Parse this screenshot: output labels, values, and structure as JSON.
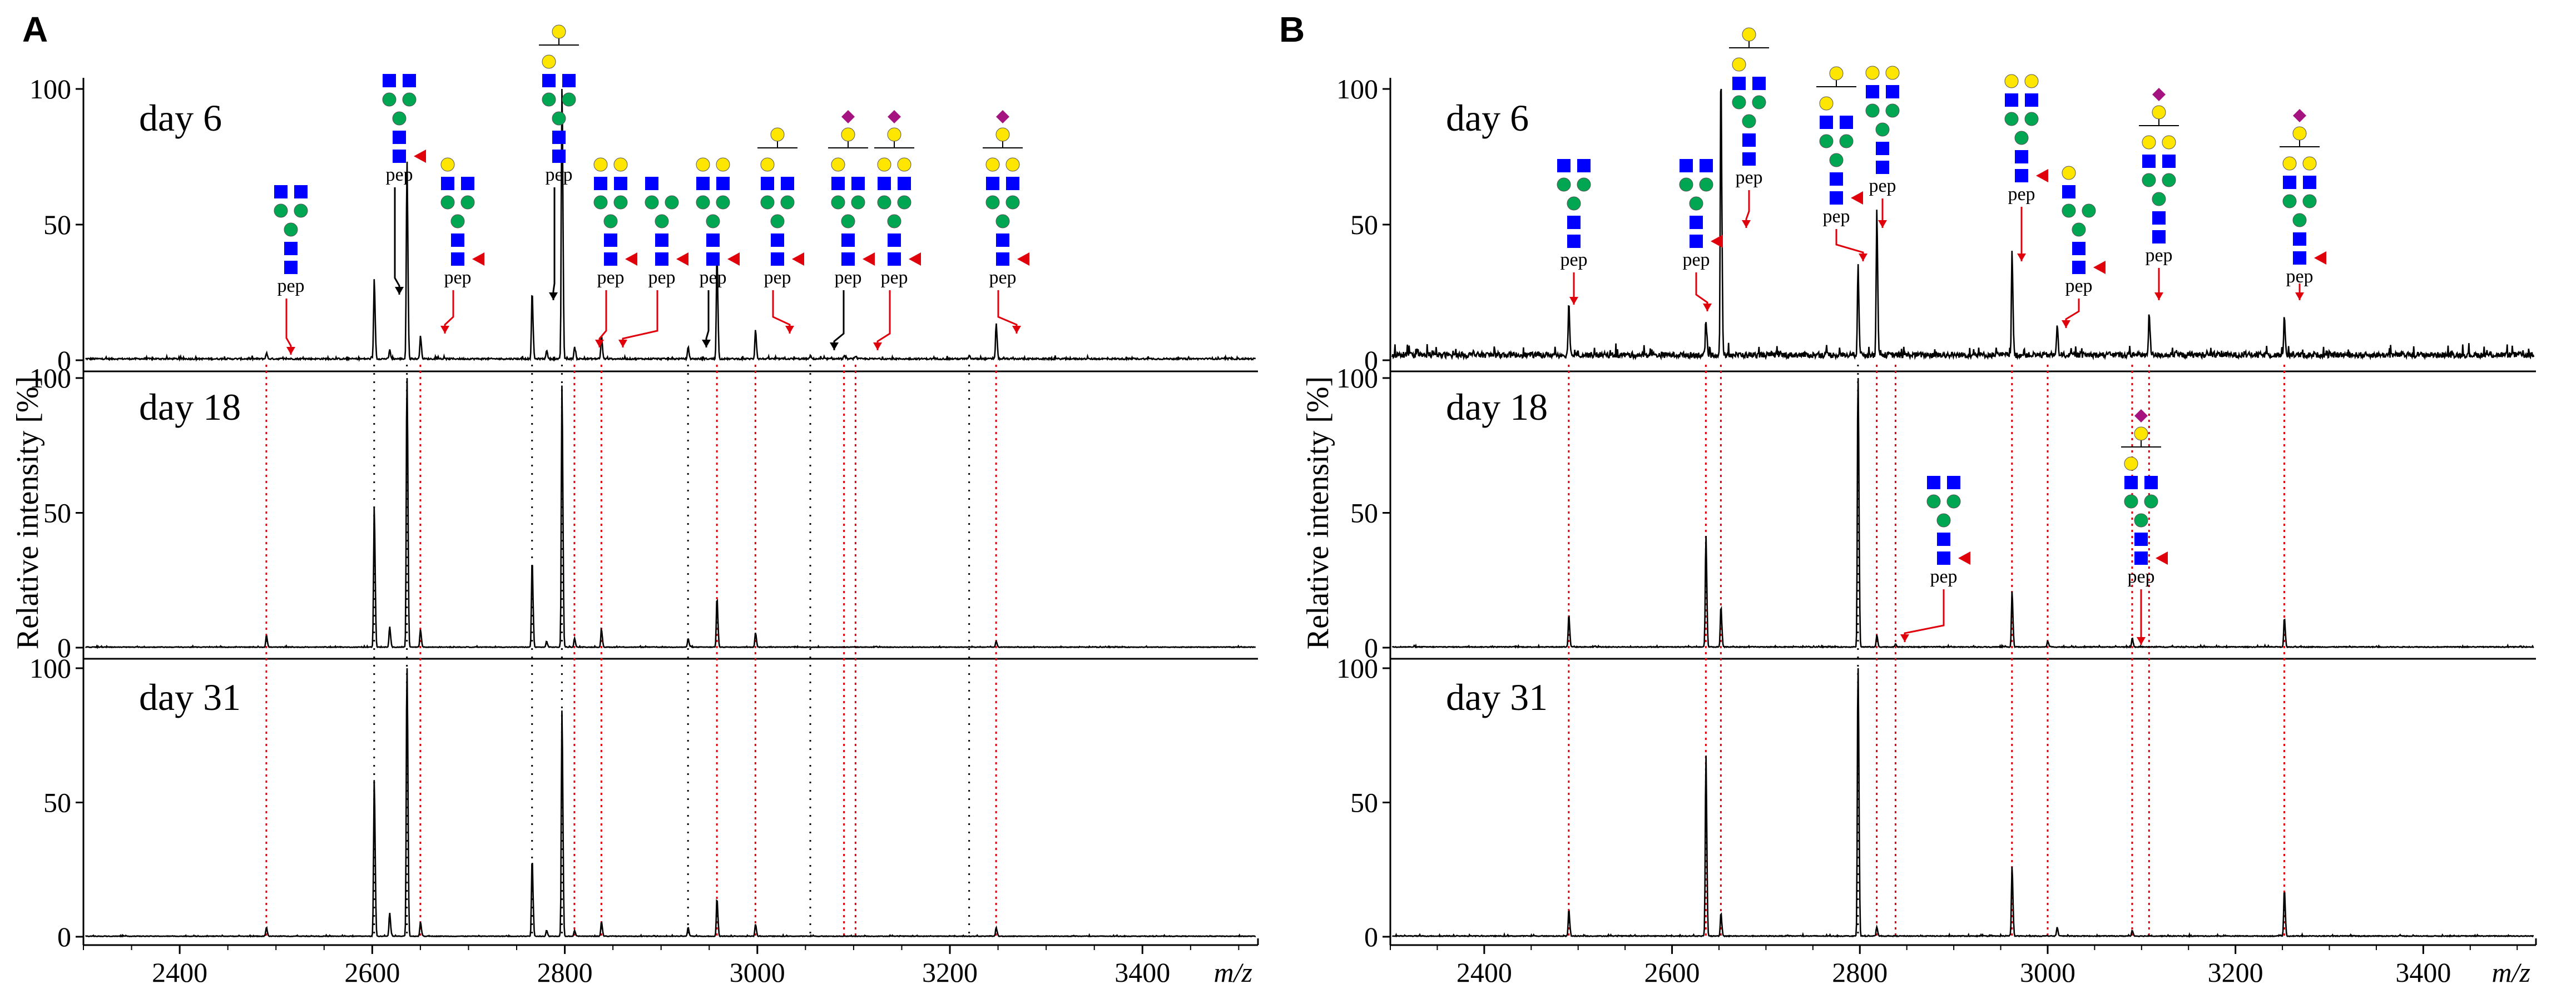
{
  "figure": {
    "panel_a_label": "A",
    "panel_b_label": "B",
    "ylabel": "Relative intensity [%]",
    "xlabel": "m/z",
    "glycan_peptide_label": "pep"
  },
  "colors": {
    "trace": "#000000",
    "red_guide": "#e0000b",
    "black_guide": "#000000",
    "glcnac_square": "#0000ff",
    "mannose_circle": "#00a651",
    "galactose_circle": "#ffe600",
    "fucose_triangle": "#e0000b",
    "sialic_diamond": "#a4137f"
  },
  "chart_data": [
    {
      "panel": "A",
      "type": "line",
      "title": "",
      "xlabel": "m/z",
      "ylabel": "Relative intensity [%]",
      "xlim": [
        2300,
        3520
      ],
      "ylim": [
        0,
        100
      ],
      "xticks": [
        2400,
        2600,
        2800,
        3000,
        3200,
        3400
      ],
      "yticks": [
        0,
        50,
        100
      ],
      "red_guides_mz": [
        2490,
        2650,
        2810,
        2838,
        2958,
        2998,
        3090,
        3102,
        3248
      ],
      "black_guides_mz": [
        2602,
        2636,
        2766,
        2797,
        2928,
        3055,
        3220
      ],
      "subplots": [
        {
          "label": "day 6",
          "noise": 0.8,
          "peaks": [
            {
              "mz": 2490,
              "intensity": 2
            },
            {
              "mz": 2602,
              "intensity": 27
            },
            {
              "mz": 2618,
              "intensity": 3
            },
            {
              "mz": 2636,
              "intensity": 67
            },
            {
              "mz": 2650,
              "intensity": 8
            },
            {
              "mz": 2766,
              "intensity": 23
            },
            {
              "mz": 2781,
              "intensity": 3
            },
            {
              "mz": 2797,
              "intensity": 96
            },
            {
              "mz": 2810,
              "intensity": 4
            },
            {
              "mz": 2838,
              "intensity": 8
            },
            {
              "mz": 2928,
              "intensity": 4
            },
            {
              "mz": 2958,
              "intensity": 35
            },
            {
              "mz": 2998,
              "intensity": 10
            },
            {
              "mz": 3055,
              "intensity": 1
            },
            {
              "mz": 3090,
              "intensity": 1
            },
            {
              "mz": 3102,
              "intensity": 1
            },
            {
              "mz": 3220,
              "intensity": 1
            },
            {
              "mz": 3248,
              "intensity": 12
            }
          ]
        },
        {
          "label": "day 18",
          "noise": 0.3,
          "peaks": [
            {
              "mz": 2490,
              "intensity": 4
            },
            {
              "mz": 2602,
              "intensity": 48
            },
            {
              "mz": 2618,
              "intensity": 7
            },
            {
              "mz": 2636,
              "intensity": 100
            },
            {
              "mz": 2650,
              "intensity": 6
            },
            {
              "mz": 2766,
              "intensity": 30
            },
            {
              "mz": 2781,
              "intensity": 2
            },
            {
              "mz": 2797,
              "intensity": 90
            },
            {
              "mz": 2810,
              "intensity": 3
            },
            {
              "mz": 2838,
              "intensity": 6
            },
            {
              "mz": 2928,
              "intensity": 3
            },
            {
              "mz": 2958,
              "intensity": 17
            },
            {
              "mz": 2998,
              "intensity": 5
            },
            {
              "mz": 3248,
              "intensity": 2
            }
          ]
        },
        {
          "label": "day 31",
          "noise": 0.3,
          "peaks": [
            {
              "mz": 2490,
              "intensity": 3
            },
            {
              "mz": 2602,
              "intensity": 54
            },
            {
              "mz": 2618,
              "intensity": 8
            },
            {
              "mz": 2636,
              "intensity": 100
            },
            {
              "mz": 2650,
              "intensity": 5
            },
            {
              "mz": 2766,
              "intensity": 27
            },
            {
              "mz": 2781,
              "intensity": 2
            },
            {
              "mz": 2797,
              "intensity": 78
            },
            {
              "mz": 2810,
              "intensity": 2
            },
            {
              "mz": 2838,
              "intensity": 5
            },
            {
              "mz": 2928,
              "intensity": 3
            },
            {
              "mz": 2958,
              "intensity": 13
            },
            {
              "mz": 2998,
              "intensity": 4
            },
            {
              "mz": 3248,
              "intensity": 3
            }
          ]
        }
      ]
    },
    {
      "panel": "B",
      "type": "line",
      "title": "",
      "xlabel": "m/z",
      "ylabel": "Relative intensity [%]",
      "xlim": [
        2300,
        3520
      ],
      "ylim": [
        0,
        100
      ],
      "xticks": [
        2400,
        2600,
        2800,
        3000,
        3200,
        3400
      ],
      "yticks": [
        0,
        50,
        100
      ],
      "red_guides_mz": [
        2490,
        2636,
        2652,
        2818,
        2838,
        2962,
        3000,
        3090,
        3108,
        3252
      ],
      "black_guides_mz": [
        2798
      ],
      "subplots": [
        {
          "label": "day 6",
          "noise": 3,
          "peaks": [
            {
              "mz": 2490,
              "intensity": 18
            },
            {
              "mz": 2636,
              "intensity": 10
            },
            {
              "mz": 2652,
              "intensity": 98
            },
            {
              "mz": 2798,
              "intensity": 31
            },
            {
              "mz": 2818,
              "intensity": 48
            },
            {
              "mz": 2962,
              "intensity": 35
            },
            {
              "mz": 3010,
              "intensity": 10
            },
            {
              "mz": 3108,
              "intensity": 14
            },
            {
              "mz": 3252,
              "intensity": 13
            }
          ]
        },
        {
          "label": "day 18",
          "noise": 0.4,
          "peaks": [
            {
              "mz": 2490,
              "intensity": 11
            },
            {
              "mz": 2636,
              "intensity": 38
            },
            {
              "mz": 2652,
              "intensity": 14
            },
            {
              "mz": 2798,
              "intensity": 100
            },
            {
              "mz": 2818,
              "intensity": 4
            },
            {
              "mz": 2838,
              "intensity": 1
            },
            {
              "mz": 2962,
              "intensity": 19
            },
            {
              "mz": 3000,
              "intensity": 2
            },
            {
              "mz": 3090,
              "intensity": 3
            },
            {
              "mz": 3252,
              "intensity": 10
            }
          ]
        },
        {
          "label": "day 31",
          "noise": 0.4,
          "peaks": [
            {
              "mz": 2490,
              "intensity": 9
            },
            {
              "mz": 2636,
              "intensity": 62
            },
            {
              "mz": 2652,
              "intensity": 8
            },
            {
              "mz": 2798,
              "intensity": 100
            },
            {
              "mz": 2818,
              "intensity": 3
            },
            {
              "mz": 2962,
              "intensity": 24
            },
            {
              "mz": 3010,
              "intensity": 3
            },
            {
              "mz": 3090,
              "intensity": 2
            },
            {
              "mz": 3252,
              "intensity": 16
            }
          ]
        }
      ]
    }
  ]
}
